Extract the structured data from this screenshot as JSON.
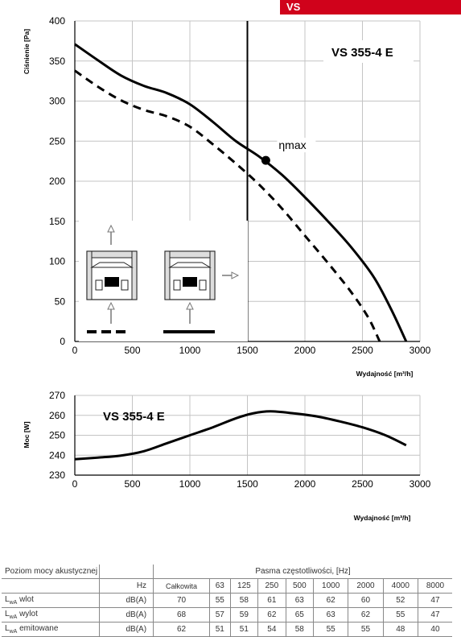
{
  "badge": {
    "label": "VS",
    "color": "#d0021b"
  },
  "chart_data": [
    {
      "type": "line",
      "model_label": "VS 355-4 E",
      "xlabel": "Wydajność [m³/h]",
      "ylabel": "Ciśnienie [Pa]",
      "xlim": [
        0,
        3000
      ],
      "ylim": [
        0,
        400
      ],
      "x_ticks": [
        0,
        500,
        1000,
        1500,
        2000,
        2500,
        3000
      ],
      "y_ticks": [
        0,
        50,
        100,
        150,
        200,
        250,
        300,
        350,
        400
      ],
      "grid": true,
      "series": [
        {
          "style": "solid",
          "points": [
            [
              0,
              371
            ],
            [
              200,
              351
            ],
            [
              400,
              332
            ],
            [
              600,
              319
            ],
            [
              800,
              310
            ],
            [
              1000,
              296
            ],
            [
              1200,
              274
            ],
            [
              1400,
              250
            ],
            [
              1600,
              231
            ],
            [
              1800,
              208
            ],
            [
              2000,
              180
            ],
            [
              2200,
              150
            ],
            [
              2400,
              118
            ],
            [
              2600,
              80
            ],
            [
              2750,
              40
            ],
            [
              2880,
              0
            ]
          ]
        },
        {
          "style": "dashed",
          "points": [
            [
              0,
              338
            ],
            [
              200,
              318
            ],
            [
              400,
              301
            ],
            [
              600,
              289
            ],
            [
              800,
              281
            ],
            [
              1000,
              268
            ],
            [
              1200,
              246
            ],
            [
              1400,
              222
            ],
            [
              1600,
              196
            ],
            [
              1800,
              166
            ],
            [
              2000,
              132
            ],
            [
              2200,
              98
            ],
            [
              2400,
              62
            ],
            [
              2550,
              30
            ],
            [
              2650,
              0
            ]
          ]
        }
      ],
      "vertical_line_x": 1500,
      "marker": {
        "x": 1660,
        "y": 226,
        "label": "ηmax"
      },
      "legend": "bottom-left"
    },
    {
      "type": "line",
      "model_label": "VS 355-4 E",
      "xlabel": "Wydajność [m³/h]",
      "ylabel": "Moc [W]",
      "xlim": [
        0,
        3000
      ],
      "ylim": [
        230,
        270
      ],
      "x_ticks": [
        0,
        500,
        1000,
        1500,
        2000,
        2500,
        3000
      ],
      "y_ticks": [
        230,
        240,
        250,
        260,
        270
      ],
      "grid": true,
      "series": [
        {
          "style": "solid",
          "points": [
            [
              0,
              238
            ],
            [
              200,
              238.8
            ],
            [
              400,
              239.8
            ],
            [
              600,
              242
            ],
            [
              800,
              246
            ],
            [
              1000,
              250
            ],
            [
              1200,
              254
            ],
            [
              1400,
              258.5
            ],
            [
              1550,
              261
            ],
            [
              1700,
              262
            ],
            [
              1900,
              261
            ],
            [
              2100,
              259.5
            ],
            [
              2300,
              257
            ],
            [
              2500,
              254
            ],
            [
              2700,
              250
            ],
            [
              2880,
              245
            ]
          ]
        }
      ]
    }
  ],
  "table": {
    "title": "Poziom mocy akustycznej",
    "band_header": "Pasma częstotliwości, [Hz]",
    "unit_header": "Hz",
    "columns": [
      "Całkowita",
      "63",
      "125",
      "250",
      "500",
      "1000",
      "2000",
      "4000",
      "8000"
    ],
    "rows": [
      {
        "label_main": "L",
        "label_sub": "wA",
        "label_rest": " wlot",
        "unit": "dB(A)",
        "values": [
          "70",
          "55",
          "58",
          "61",
          "63",
          "62",
          "60",
          "52",
          "47"
        ]
      },
      {
        "label_main": "L",
        "label_sub": "wA",
        "label_rest": " wylot",
        "unit": "dB(A)",
        "values": [
          "68",
          "57",
          "59",
          "62",
          "65",
          "63",
          "62",
          "55",
          "47"
        ]
      },
      {
        "label_main": "L",
        "label_sub": "wA",
        "label_rest": " emitowane",
        "unit": "dB(A)",
        "values": [
          "62",
          "51",
          "51",
          "54",
          "58",
          "55",
          "55",
          "48",
          "40"
        ]
      }
    ]
  }
}
